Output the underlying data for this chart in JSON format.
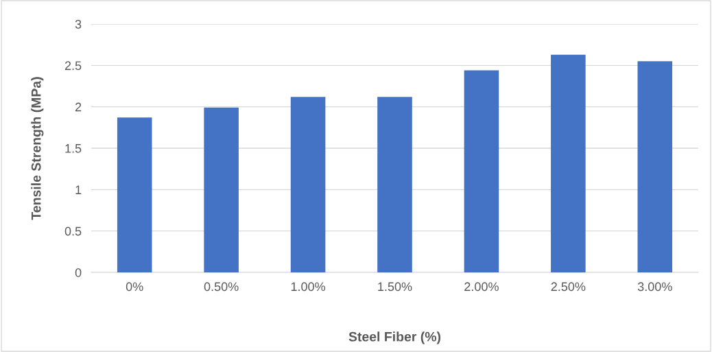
{
  "chart_data": {
    "type": "bar",
    "xlabel": "Steel Fiber (%)",
    "ylabel": "Tensile Strength (MPa)",
    "categories": [
      "0%",
      "0.50%",
      "1.00%",
      "1.50%",
      "2.00%",
      "2.50%",
      "3.00%"
    ],
    "values": [
      1.87,
      1.99,
      2.12,
      2.12,
      2.44,
      2.63,
      2.55
    ],
    "color": "#4472c4",
    "ylim": [
      0,
      3
    ],
    "yticks": [
      0,
      0.5,
      1,
      1.5,
      2,
      2.5,
      3
    ],
    "grid": "y"
  }
}
